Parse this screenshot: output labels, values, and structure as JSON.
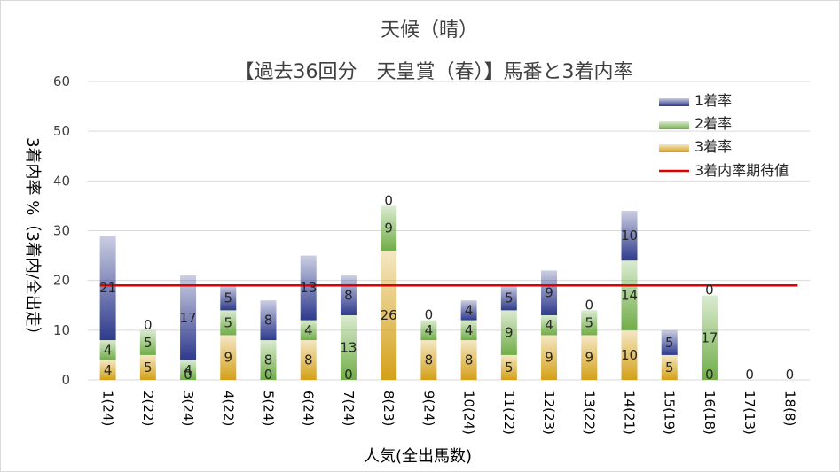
{
  "chart_data": {
    "type": "bar",
    "stacked": true,
    "title": "天候（晴）",
    "subtitle": "【過去36回分　天皇賞（春）】馬番と3着内率",
    "xlabel": "人気(全出馬数)",
    "ylabel": "3着内率 %（3着内/全出走）",
    "ylim": [
      0,
      60
    ],
    "yticks": [
      "0",
      "10",
      "20",
      "30",
      "40",
      "50",
      "60"
    ],
    "grid": true,
    "legend_position": "top-right",
    "categories": [
      "1(24)",
      "2(22)",
      "3(24)",
      "4(22)",
      "5(24)",
      "6(24)",
      "7(24)",
      "8(23)",
      "9(24)",
      "10(24)",
      "11(22)",
      "12(23)",
      "13(22)",
      "14(21)",
      "15(19)",
      "16(18)",
      "17(13)",
      "18(8)"
    ],
    "series": [
      {
        "name": "3着率",
        "color": "#d4a017",
        "values": [
          4,
          5,
          0,
          9,
          0,
          8,
          0,
          26,
          8,
          8,
          5,
          9,
          9,
          10,
          5,
          0,
          0,
          0
        ],
        "labels": [
          "4",
          "5",
          "0",
          "9",
          "0",
          "8",
          "0",
          "26",
          "8",
          "8",
          "5",
          "9",
          "9",
          "10",
          "5",
          "0",
          "0",
          "0"
        ]
      },
      {
        "name": "2着率",
        "color": "#70ad47",
        "values": [
          4,
          5,
          4,
          5,
          8,
          4,
          13,
          9,
          4,
          4,
          9,
          4,
          5,
          14,
          0,
          17,
          0,
          0
        ],
        "labels": [
          "4",
          "5",
          "4",
          "5",
          "8",
          "4",
          "13",
          "9",
          "4",
          "4",
          "9",
          "4",
          "5",
          "14",
          "",
          "17",
          "",
          ""
        ]
      },
      {
        "name": "1着率",
        "color": "#2e3a8c",
        "values": [
          21,
          0,
          17,
          5,
          8,
          13,
          8,
          0,
          0,
          4,
          5,
          9,
          0,
          10,
          5,
          0,
          0,
          0
        ],
        "labels": [
          "21",
          "0",
          "17",
          "5",
          "8",
          "13",
          "8",
          "0",
          "0",
          "4",
          "5",
          "9",
          "0",
          "10",
          "5",
          "0",
          "",
          ""
        ]
      }
    ],
    "line": {
      "name": "3着内率期待値",
      "color": "#e00000",
      "value": 19
    }
  }
}
